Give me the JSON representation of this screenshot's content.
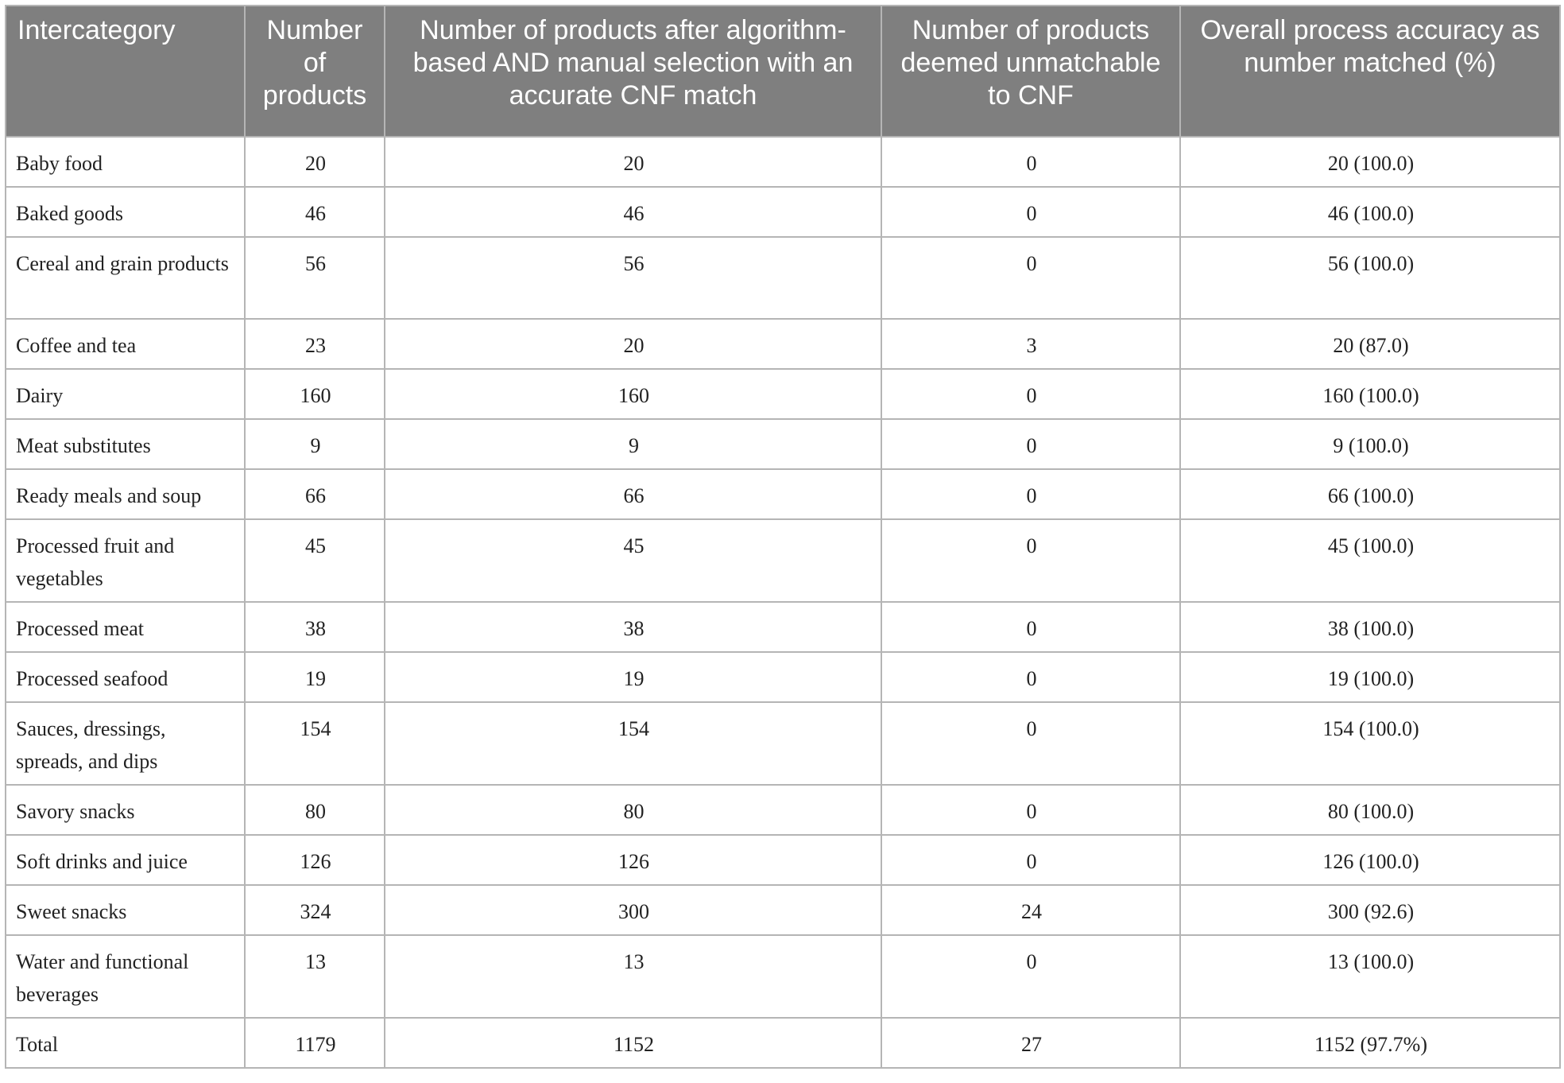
{
  "table": {
    "headers": [
      "Intercategory",
      "Number of products",
      "Number of products after algorithm-based AND manual selection with an accurate CNF match",
      "Number of products deemed unmatchable to CNF",
      "Overall process accuracy as number matched (%)"
    ],
    "rows": [
      {
        "category": "Baby food",
        "products": "20",
        "matched": "20",
        "unmatchable": "0",
        "accuracy": "20 (100.0)"
      },
      {
        "category": "Baked goods",
        "products": "46",
        "matched": "46",
        "unmatchable": "0",
        "accuracy": "46 (100.0)"
      },
      {
        "category": "Cereal and grain products",
        "products": "56",
        "matched": "56",
        "unmatchable": "0",
        "accuracy": "56 (100.0)"
      },
      {
        "category": "Coffee and tea",
        "products": "23",
        "matched": "20",
        "unmatchable": "3",
        "accuracy": "20 (87.0)"
      },
      {
        "category": "Dairy",
        "products": "160",
        "matched": "160",
        "unmatchable": "0",
        "accuracy": "160 (100.0)"
      },
      {
        "category": "Meat substitutes",
        "products": "9",
        "matched": "9",
        "unmatchable": "0",
        "accuracy": "9 (100.0)"
      },
      {
        "category": "Ready meals and soup",
        "products": "66",
        "matched": "66",
        "unmatchable": "0",
        "accuracy": "66 (100.0)"
      },
      {
        "category": "Processed fruit and vegetables",
        "products": "45",
        "matched": "45",
        "unmatchable": "0",
        "accuracy": "45 (100.0)"
      },
      {
        "category": "Processed meat",
        "products": "38",
        "matched": "38",
        "unmatchable": "0",
        "accuracy": "38 (100.0)"
      },
      {
        "category": "Processed seafood",
        "products": "19",
        "matched": "19",
        "unmatchable": "0",
        "accuracy": "19 (100.0)"
      },
      {
        "category": "Sauces, dressings, spreads, and dips",
        "products": "154",
        "matched": "154",
        "unmatchable": "0",
        "accuracy": "154 (100.0)"
      },
      {
        "category": "Savory snacks",
        "products": "80",
        "matched": "80",
        "unmatchable": "0",
        "accuracy": "80 (100.0)"
      },
      {
        "category": "Soft drinks and juice",
        "products": "126",
        "matched": "126",
        "unmatchable": "0",
        "accuracy": "126 (100.0)"
      },
      {
        "category": "Sweet snacks",
        "products": "324",
        "matched": "300",
        "unmatchable": "24",
        "accuracy": "300 (92.6)"
      },
      {
        "category": "Water and functional beverages",
        "products": "13",
        "matched": "13",
        "unmatchable": "0",
        "accuracy": "13 (100.0)"
      },
      {
        "category": "Total",
        "products": "1179",
        "matched": "1152",
        "unmatchable": "27",
        "accuracy": "1152 (97.7%)"
      }
    ]
  }
}
